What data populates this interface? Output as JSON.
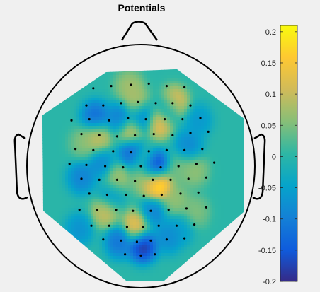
{
  "chart_data": {
    "type": "heatmap",
    "subtype": "eeg-topographic-map",
    "title": "Potentials",
    "colorbar": {
      "range": [
        -0.2,
        0.21
      ],
      "ticks": [
        0.2,
        0.15,
        0.1,
        0.05,
        0,
        -0.05,
        -0.1,
        -0.15,
        -0.2
      ],
      "tick_labels": [
        "0.2",
        "0.15",
        "0.1",
        "0.05",
        "0",
        "-0.05",
        "-0.1",
        "-0.15",
        "-0.2"
      ],
      "colormap": "parula",
      "colormap_stops": [
        "#352a87",
        "#0f5cdd",
        "#1481d6",
        "#06a4ca",
        "#2eb7a4",
        "#87bf77",
        "#d1bb59",
        "#fec832",
        "#f9fb0e"
      ]
    },
    "hotspots": [
      {
        "u": 0.18,
        "v": -0.38,
        "value": 0.14
      },
      {
        "u": -0.1,
        "v": -0.3,
        "value": 0.12
      },
      {
        "u": 0.33,
        "v": -0.55,
        "value": 0.16
      },
      {
        "u": -0.44,
        "v": -0.25,
        "value": 0.1
      },
      {
        "u": -0.05,
        "v": -0.56,
        "value": 0.08
      },
      {
        "u": -0.12,
        "v": -0.7,
        "value": 0.07
      },
      {
        "u": 0.05,
        "v": 0.12,
        "value": 0.07
      },
      {
        "u": 0.17,
        "v": 0.16,
        "value": 0.2
      },
      {
        "u": 0.39,
        "v": 0.03,
        "value": 0.04
      },
      {
        "u": 0.54,
        "v": 0.04,
        "value": 0.06
      },
      {
        "u": -0.25,
        "v": 0.12,
        "value": 0.08
      },
      {
        "u": -0.36,
        "v": 0.4,
        "value": 0.1
      },
      {
        "u": -0.05,
        "v": 0.52,
        "value": 0.13
      },
      {
        "u": 0.35,
        "v": 0.3,
        "value": 0.06
      },
      {
        "u": 0.55,
        "v": 0.4,
        "value": 0.05
      },
      {
        "u": 0.02,
        "v": -0.08,
        "value": 0.04
      },
      {
        "u": -0.58,
        "v": -0.2,
        "value": 0.05
      },
      {
        "u": -0.2,
        "v": -0.42,
        "value": -0.1
      },
      {
        "u": 0.02,
        "v": -0.42,
        "value": -0.11
      },
      {
        "u": -0.46,
        "v": -0.43,
        "value": -0.12
      },
      {
        "u": -0.08,
        "v": -0.13,
        "value": -0.15
      },
      {
        "u": 0.14,
        "v": 0.0,
        "value": -0.19
      },
      {
        "u": 0.28,
        "v": -0.5,
        "value": -0.1
      },
      {
        "u": -0.4,
        "v": -0.02,
        "value": -0.08
      },
      {
        "u": 0.12,
        "v": 0.4,
        "value": -0.09
      },
      {
        "u": 0.02,
        "v": 0.7,
        "value": -0.18
      },
      {
        "u": 0.28,
        "v": 0.62,
        "value": -0.08
      },
      {
        "u": -0.22,
        "v": 0.66,
        "value": -0.11
      },
      {
        "u": -0.6,
        "v": 0.1,
        "value": -0.09
      },
      {
        "u": 0.48,
        "v": -0.18,
        "value": -0.08
      },
      {
        "u": -0.3,
        "v": 0.25,
        "value": -0.07
      },
      {
        "u": 0.58,
        "v": -0.4,
        "value": -0.06
      },
      {
        "u": -0.62,
        "v": 0.55,
        "value": -0.07
      },
      {
        "u": 0.4,
        "v": 0.55,
        "value": -0.05
      }
    ],
    "electrodes": [
      [
        -0.48,
        -0.68
      ],
      [
        -0.3,
        -0.7
      ],
      [
        -0.1,
        -0.71
      ],
      [
        0.08,
        -0.72
      ],
      [
        0.26,
        -0.7
      ],
      [
        0.44,
        -0.69
      ],
      [
        -0.55,
        -0.53
      ],
      [
        -0.38,
        -0.53
      ],
      [
        -0.2,
        -0.55
      ],
      [
        -0.03,
        -0.56
      ],
      [
        0.15,
        -0.55
      ],
      [
        0.32,
        -0.55
      ],
      [
        0.5,
        -0.53
      ],
      [
        -0.7,
        -0.4
      ],
      [
        -0.52,
        -0.41
      ],
      [
        -0.32,
        -0.4
      ],
      [
        -0.13,
        -0.42
      ],
      [
        0.05,
        -0.41
      ],
      [
        0.24,
        -0.41
      ],
      [
        0.42,
        -0.41
      ],
      [
        0.6,
        -0.42
      ],
      [
        -0.6,
        -0.28
      ],
      [
        -0.42,
        -0.27
      ],
      [
        -0.24,
        -0.26
      ],
      [
        -0.06,
        -0.27
      ],
      [
        0.13,
        -0.28
      ],
      [
        0.32,
        -0.27
      ],
      [
        0.5,
        -0.29
      ],
      [
        0.68,
        -0.3
      ],
      [
        -0.66,
        -0.15
      ],
      [
        -0.48,
        -0.14
      ],
      [
        -0.28,
        -0.13
      ],
      [
        -0.1,
        -0.12
      ],
      [
        0.08,
        -0.13
      ],
      [
        0.26,
        -0.14
      ],
      [
        0.44,
        -0.14
      ],
      [
        0.62,
        -0.15
      ],
      [
        -0.72,
        -0.02
      ],
      [
        -0.55,
        -0.01
      ],
      [
        -0.36,
        0.0
      ],
      [
        -0.18,
        0.01
      ],
      [
        0.0,
        0.0
      ],
      [
        0.2,
        0.01
      ],
      [
        0.38,
        0.0
      ],
      [
        0.56,
        -0.02
      ],
      [
        0.74,
        -0.03
      ],
      [
        -0.6,
        0.11
      ],
      [
        -0.42,
        0.12
      ],
      [
        -0.24,
        0.12
      ],
      [
        -0.06,
        0.13
      ],
      [
        0.12,
        0.12
      ],
      [
        0.3,
        0.12
      ],
      [
        0.48,
        0.11
      ],
      [
        0.66,
        0.1
      ],
      [
        -0.52,
        0.24
      ],
      [
        -0.34,
        0.25
      ],
      [
        -0.15,
        0.25
      ],
      [
        0.03,
        0.26
      ],
      [
        0.21,
        0.25
      ],
      [
        0.4,
        0.24
      ],
      [
        0.58,
        0.23
      ],
      [
        -0.62,
        0.38
      ],
      [
        -0.44,
        0.38
      ],
      [
        -0.25,
        0.38
      ],
      [
        -0.08,
        0.39
      ],
      [
        0.1,
        0.39
      ],
      [
        0.28,
        0.38
      ],
      [
        0.46,
        0.37
      ],
      [
        0.66,
        0.36
      ],
      [
        -0.5,
        0.52
      ],
      [
        -0.32,
        0.52
      ],
      [
        -0.14,
        0.53
      ],
      [
        0.02,
        0.53
      ],
      [
        0.18,
        0.52
      ],
      [
        0.36,
        0.52
      ],
      [
        0.54,
        0.51
      ],
      [
        -0.38,
        0.64
      ],
      [
        -0.2,
        0.65
      ],
      [
        -0.04,
        0.66
      ],
      [
        0.1,
        0.65
      ],
      [
        0.26,
        0.64
      ],
      [
        0.44,
        0.63
      ],
      [
        -0.16,
        0.77
      ],
      [
        0.0,
        0.78
      ],
      [
        0.14,
        0.77
      ]
    ]
  }
}
